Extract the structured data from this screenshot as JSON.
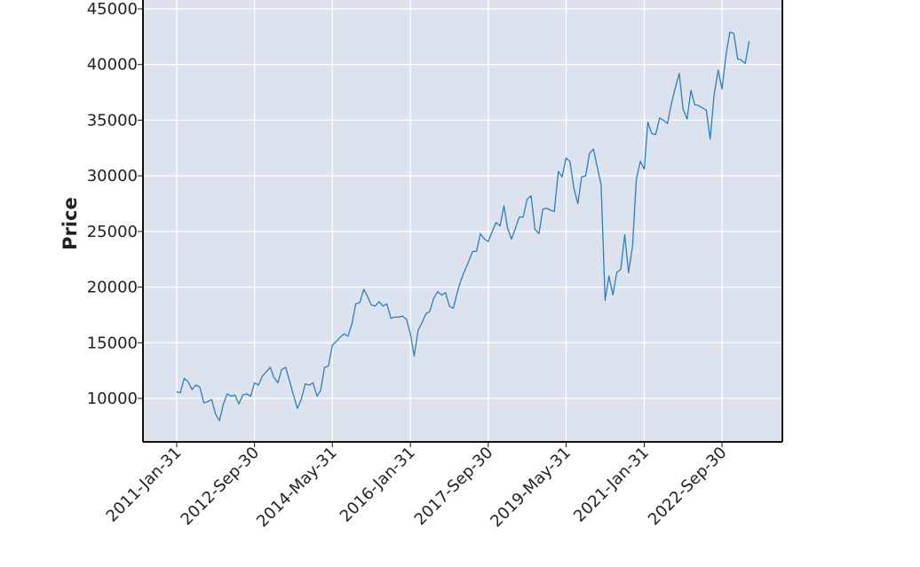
{
  "chart_data": {
    "type": "line",
    "title": "",
    "xlabel": "",
    "ylabel": "Price",
    "grid": true,
    "legend": "none",
    "ylim": [
      6000,
      46000
    ],
    "yticks": [
      10000,
      15000,
      20000,
      25000,
      30000,
      35000,
      40000,
      45000
    ],
    "ytick_labels": [
      "10000",
      "15000",
      "20000",
      "25000",
      "30000",
      "35000",
      "40000",
      "45000"
    ],
    "xlim": [
      "2010-07-01",
      "2023-08-31"
    ],
    "xticks": [
      "2011-01-31",
      "2012-09-30",
      "2014-05-31",
      "2016-01-31",
      "2017-09-30",
      "2019-05-31",
      "2021-01-31",
      "2022-09-30"
    ],
    "xtick_labels": [
      "2011-Jan-31",
      "2012-Sep-30",
      "2014-May-31",
      "2016-Jan-31",
      "2017-Sep-30",
      "2019-May-31",
      "2021-Jan-31",
      "2022-Sep-30"
    ],
    "colors": {
      "line": "#2e7fb8",
      "plot_bg": "#dde3ee",
      "grid": "#ffffff",
      "frame": "#111111"
    },
    "series": [
      {
        "x": [
          "2011-01-31",
          "2011-02-28",
          "2011-03-31",
          "2011-04-30",
          "2011-05-31",
          "2011-06-30",
          "2011-07-31",
          "2011-08-31",
          "2011-09-30",
          "2011-10-31",
          "2011-11-30",
          "2011-12-31",
          "2012-01-31",
          "2012-02-29",
          "2012-03-31",
          "2012-04-30",
          "2012-05-31",
          "2012-06-30",
          "2012-07-31",
          "2012-08-31",
          "2012-09-30",
          "2012-10-31",
          "2012-11-30",
          "2012-12-31",
          "2013-01-31",
          "2013-02-28",
          "2013-03-31",
          "2013-04-30",
          "2013-05-31",
          "2013-06-30",
          "2013-07-31",
          "2013-08-31",
          "2013-09-30",
          "2013-10-31",
          "2013-11-30",
          "2013-12-31",
          "2014-01-31",
          "2014-02-28",
          "2014-03-31",
          "2014-04-30",
          "2014-05-31",
          "2014-06-30",
          "2014-07-31",
          "2014-08-31",
          "2014-09-30",
          "2014-10-31",
          "2014-11-30",
          "2014-12-31",
          "2015-01-31",
          "2015-02-28",
          "2015-03-31",
          "2015-04-30",
          "2015-05-31",
          "2015-06-30",
          "2015-07-31",
          "2015-08-31",
          "2015-09-30",
          "2015-10-31",
          "2015-11-30",
          "2015-12-31",
          "2016-01-31",
          "2016-02-29",
          "2016-03-31",
          "2016-04-30",
          "2016-05-31",
          "2016-06-30",
          "2016-07-31",
          "2016-08-31",
          "2016-09-30",
          "2016-10-31",
          "2016-11-30",
          "2016-12-31",
          "2017-01-31",
          "2017-02-28",
          "2017-03-31",
          "2017-04-30",
          "2017-05-31",
          "2017-06-30",
          "2017-07-31",
          "2017-08-31",
          "2017-09-30",
          "2017-10-31",
          "2017-11-30",
          "2017-12-31",
          "2018-01-31",
          "2018-02-28",
          "2018-03-31",
          "2018-04-30",
          "2018-05-31",
          "2018-06-30",
          "2018-07-31",
          "2018-08-31",
          "2018-09-30",
          "2018-10-31",
          "2018-11-30",
          "2018-12-31",
          "2019-01-31",
          "2019-02-28",
          "2019-03-31",
          "2019-04-30",
          "2019-05-31",
          "2019-06-30",
          "2019-07-31",
          "2019-08-31",
          "2019-09-30",
          "2019-10-31",
          "2019-11-30",
          "2019-12-31",
          "2020-01-31",
          "2020-02-29",
          "2020-03-31",
          "2020-04-30",
          "2020-05-31",
          "2020-06-30",
          "2020-07-31",
          "2020-08-31",
          "2020-09-30",
          "2020-10-31",
          "2020-11-30",
          "2020-12-31",
          "2021-01-31",
          "2021-02-28",
          "2021-03-31",
          "2021-04-30",
          "2021-05-31",
          "2021-06-30",
          "2021-07-31",
          "2021-08-31",
          "2021-09-30",
          "2021-10-31",
          "2021-11-30",
          "2021-12-31",
          "2022-01-31",
          "2022-02-28",
          "2022-03-31",
          "2022-04-30",
          "2022-05-31",
          "2022-06-30",
          "2022-07-31",
          "2022-08-31",
          "2022-09-30",
          "2022-10-31",
          "2022-11-30",
          "2022-12-31",
          "2023-01-31",
          "2023-02-28",
          "2023-03-31",
          "2023-04-30"
        ],
        "y": [
          10600,
          10500,
          11800,
          11500,
          10800,
          11200,
          11000,
          9600,
          9700,
          9900,
          8600,
          8000,
          9500,
          10400,
          10200,
          10300,
          9500,
          10300,
          10400,
          10200,
          11400,
          11200,
          12000,
          12400,
          12800,
          11900,
          11400,
          12600,
          12800,
          11600,
          10300,
          9100,
          9900,
          11300,
          11200,
          11400,
          10200,
          10700,
          12800,
          12900,
          14800,
          15100,
          15500,
          15800,
          15600,
          16700,
          18500,
          18600,
          19800,
          19200,
          18400,
          18300,
          18700,
          18300,
          18500,
          17200,
          17300,
          17300,
          17400,
          17100,
          15800,
          13800,
          16100,
          16800,
          17600,
          17800,
          19000,
          19600,
          19300,
          19500,
          18300,
          18100,
          19500,
          20600,
          21500,
          22300,
          23200,
          23200,
          24800,
          24300,
          24100,
          25000,
          25800,
          25500,
          27300,
          25300,
          24300,
          25300,
          26300,
          26300,
          27900,
          28200,
          25200,
          24800,
          27000,
          27100,
          26900,
          26800,
          30400,
          29900,
          31600,
          31300,
          28900,
          27500,
          29900,
          30000,
          32000,
          32400,
          30700,
          29200,
          18800,
          21000,
          19300,
          21300,
          21600,
          24700,
          21300,
          23700,
          29700,
          31300,
          30600,
          34800,
          33800,
          33700,
          35200,
          35000,
          34700,
          36500,
          37900,
          39200,
          36000,
          35100,
          37700,
          36400,
          36300,
          36100,
          35900,
          33300,
          37300,
          39500,
          37800,
          40800,
          42900,
          42800,
          40500,
          40400,
          40100,
          42100
        ]
      }
    ]
  }
}
